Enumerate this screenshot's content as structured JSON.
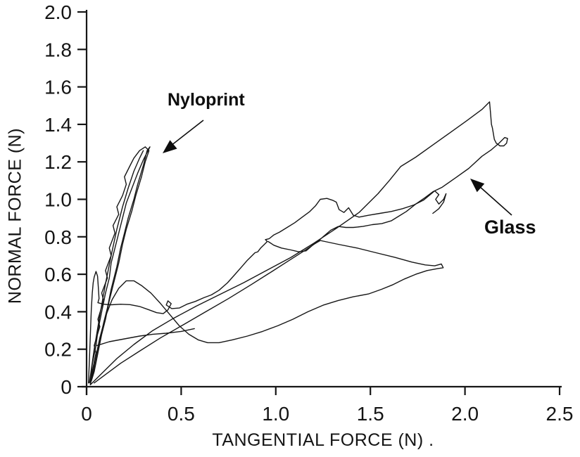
{
  "figure": {
    "background": "#ffffff",
    "ink_color": "#161616",
    "description": "Scanned line chart of normal force versus tangential force showing friction traces for Nyloprint and Glass"
  },
  "chart_data": {
    "type": "line",
    "title": "",
    "xlabel": "TANGENTIAL FORCE (N) .",
    "ylabel": "NORMAL FORCE (N)",
    "xlim": [
      0,
      2.5
    ],
    "ylim": [
      0,
      2.0
    ],
    "grid": false,
    "legend_position": "none (annotated arrows)",
    "xticks": [
      0,
      0.5,
      1.0,
      1.5,
      2.0,
      2.5
    ],
    "xtick_labels": [
      "0",
      "0.5",
      "1.0",
      "1.5",
      "2.0",
      "2.5"
    ],
    "yticks": [
      0,
      0.2,
      0.4,
      0.6,
      0.8,
      1.0,
      1.2,
      1.4,
      1.6,
      1.8,
      2.0
    ],
    "ytick_labels": [
      "0",
      "0.2",
      "0.4",
      "0.6",
      "0.8",
      "1.0",
      "1.2",
      "1.4",
      "1.6",
      "1.8",
      "2.0"
    ],
    "annotations": [
      {
        "text": "Nyloprint",
        "label_x": 0.45,
        "label_y": 1.55,
        "arrow_tip_x": 0.4,
        "arrow_tip_y": 1.25
      },
      {
        "text": "Glass",
        "label_x": 2.12,
        "label_y": 0.88,
        "arrow_tip_x": 2.03,
        "arrow_tip_y": 1.11
      }
    ],
    "series": [
      {
        "name": "nyloprint-cycle-1",
        "material": "Nyloprint",
        "color": "#161616",
        "points": [
          [
            0.02,
            0.02
          ],
          [
            0.03,
            0.12
          ],
          [
            0.05,
            0.22
          ],
          [
            0.06,
            0.3
          ],
          [
            0.08,
            0.4
          ],
          [
            0.1,
            0.5
          ],
          [
            0.12,
            0.58
          ],
          [
            0.13,
            0.66
          ],
          [
            0.15,
            0.74
          ],
          [
            0.17,
            0.82
          ],
          [
            0.19,
            0.9
          ],
          [
            0.21,
            0.98
          ],
          [
            0.24,
            1.06
          ],
          [
            0.27,
            1.14
          ],
          [
            0.3,
            1.21
          ],
          [
            0.33,
            1.27
          ],
          [
            0.335,
            1.28
          ],
          [
            0.32,
            1.26
          ],
          [
            0.3,
            1.18
          ],
          [
            0.27,
            1.08
          ],
          [
            0.25,
            1.0
          ],
          [
            0.22,
            0.9
          ],
          [
            0.2,
            0.82
          ],
          [
            0.18,
            0.74
          ],
          [
            0.16,
            0.64
          ],
          [
            0.13,
            0.52
          ],
          [
            0.11,
            0.42
          ],
          [
            0.09,
            0.34
          ],
          [
            0.07,
            0.24
          ],
          [
            0.05,
            0.14
          ],
          [
            0.03,
            0.05
          ],
          [
            0.02,
            0.02
          ]
        ]
      },
      {
        "name": "nyloprint-cycle-2",
        "material": "Nyloprint",
        "color": "#161616",
        "points": [
          [
            0.02,
            0.03
          ],
          [
            0.05,
            0.18
          ],
          [
            0.04,
            0.22
          ],
          [
            0.07,
            0.32
          ],
          [
            0.06,
            0.36
          ],
          [
            0.09,
            0.46
          ],
          [
            0.08,
            0.5
          ],
          [
            0.11,
            0.58
          ],
          [
            0.1,
            0.62
          ],
          [
            0.13,
            0.7
          ],
          [
            0.12,
            0.74
          ],
          [
            0.15,
            0.82
          ],
          [
            0.14,
            0.86
          ],
          [
            0.17,
            0.92
          ],
          [
            0.16,
            0.96
          ],
          [
            0.19,
            1.02
          ],
          [
            0.21,
            1.08
          ],
          [
            0.2,
            1.12
          ],
          [
            0.23,
            1.18
          ],
          [
            0.25,
            1.22
          ],
          [
            0.28,
            1.26
          ],
          [
            0.31,
            1.28
          ],
          [
            0.33,
            1.26
          ],
          [
            0.31,
            1.2
          ],
          [
            0.29,
            1.12
          ],
          [
            0.26,
            1.02
          ],
          [
            0.24,
            0.94
          ],
          [
            0.21,
            0.84
          ],
          [
            0.19,
            0.76
          ],
          [
            0.17,
            0.66
          ],
          [
            0.14,
            0.54
          ],
          [
            0.12,
            0.46
          ],
          [
            0.1,
            0.36
          ],
          [
            0.08,
            0.28
          ],
          [
            0.06,
            0.18
          ],
          [
            0.04,
            0.08
          ],
          [
            0.025,
            0.03
          ]
        ]
      },
      {
        "name": "nyloprint-cycle-3",
        "material": "Nyloprint",
        "color": "#161616",
        "points": [
          [
            0.015,
            0.02
          ],
          [
            0.04,
            0.2
          ],
          [
            0.07,
            0.38
          ],
          [
            0.1,
            0.55
          ],
          [
            0.13,
            0.7
          ],
          [
            0.16,
            0.84
          ],
          [
            0.19,
            0.96
          ],
          [
            0.22,
            1.06
          ],
          [
            0.25,
            1.15
          ],
          [
            0.28,
            1.22
          ],
          [
            0.3,
            1.26
          ]
        ]
      },
      {
        "name": "glass-large-loop",
        "material": "Glass",
        "color": "#161616",
        "points": [
          [
            0.02,
            0.01
          ],
          [
            0.08,
            0.07
          ],
          [
            0.16,
            0.15
          ],
          [
            0.25,
            0.225
          ],
          [
            0.35,
            0.3
          ],
          [
            0.46,
            0.365
          ],
          [
            0.58,
            0.43
          ],
          [
            0.7,
            0.49
          ],
          [
            0.83,
            0.555
          ],
          [
            0.96,
            0.625
          ],
          [
            1.08,
            0.69
          ],
          [
            1.2,
            0.765
          ],
          [
            1.32,
            0.845
          ],
          [
            1.44,
            0.93
          ],
          [
            1.54,
            1.03
          ],
          [
            1.6,
            1.1
          ],
          [
            1.66,
            1.175
          ],
          [
            1.74,
            1.225
          ],
          [
            1.83,
            1.29
          ],
          [
            1.92,
            1.355
          ],
          [
            2.01,
            1.42
          ],
          [
            2.09,
            1.48
          ],
          [
            2.13,
            1.52
          ],
          [
            2.135,
            1.46
          ],
          [
            2.14,
            1.4
          ],
          [
            2.145,
            1.38
          ],
          [
            2.155,
            1.32
          ],
          [
            2.165,
            1.3
          ],
          [
            2.185,
            1.285
          ],
          [
            2.205,
            1.285
          ],
          [
            2.22,
            1.3
          ],
          [
            2.225,
            1.325
          ],
          [
            2.21,
            1.33
          ],
          [
            2.18,
            1.3
          ],
          [
            2.14,
            1.265
          ],
          [
            2.09,
            1.23
          ],
          [
            2.02,
            1.165
          ],
          [
            1.95,
            1.115
          ],
          [
            1.88,
            1.065
          ],
          [
            1.83,
            1.04
          ],
          [
            1.79,
            1.01
          ],
          [
            1.74,
            0.975
          ],
          [
            1.69,
            0.935
          ],
          [
            1.65,
            0.91
          ],
          [
            1.61,
            0.885
          ],
          [
            1.56,
            0.87
          ],
          [
            1.51,
            0.865
          ],
          [
            1.46,
            0.855
          ],
          [
            1.41,
            0.85
          ],
          [
            1.37,
            0.85
          ],
          [
            1.33,
            0.855
          ],
          [
            1.29,
            0.835
          ],
          [
            1.25,
            0.8
          ],
          [
            1.21,
            0.765
          ],
          [
            1.15,
            0.725
          ],
          [
            1.08,
            0.68
          ],
          [
            0.98,
            0.615
          ],
          [
            0.87,
            0.545
          ],
          [
            0.75,
            0.47
          ],
          [
            0.63,
            0.4
          ],
          [
            0.51,
            0.33
          ],
          [
            0.39,
            0.26
          ],
          [
            0.28,
            0.19
          ],
          [
            0.18,
            0.125
          ],
          [
            0.1,
            0.065
          ],
          [
            0.04,
            0.02
          ]
        ]
      },
      {
        "name": "glass-stick-slip-trace",
        "material": "Glass",
        "color": "#161616",
        "points": [
          [
            0.01,
            0.02
          ],
          [
            0.015,
            0.14
          ],
          [
            0.02,
            0.28
          ],
          [
            0.025,
            0.41
          ],
          [
            0.03,
            0.5
          ],
          [
            0.035,
            0.555
          ],
          [
            0.04,
            0.585
          ],
          [
            0.05,
            0.615
          ],
          [
            0.058,
            0.59
          ],
          [
            0.062,
            0.53
          ],
          [
            0.066,
            0.47
          ],
          [
            0.06,
            0.448
          ],
          [
            0.09,
            0.44
          ],
          [
            0.13,
            0.437
          ],
          [
            0.18,
            0.44
          ],
          [
            0.23,
            0.438
          ],
          [
            0.28,
            0.428
          ],
          [
            0.33,
            0.41
          ],
          [
            0.37,
            0.395
          ],
          [
            0.405,
            0.39
          ],
          [
            0.43,
            0.41
          ],
          [
            0.447,
            0.443
          ],
          [
            0.43,
            0.458
          ],
          [
            0.421,
            0.436
          ],
          [
            0.45,
            0.417
          ],
          [
            0.49,
            0.42
          ],
          [
            0.53,
            0.44
          ],
          [
            0.575,
            0.455
          ],
          [
            0.62,
            0.475
          ],
          [
            0.66,
            0.49
          ],
          [
            0.7,
            0.515
          ],
          [
            0.745,
            0.555
          ],
          [
            0.785,
            0.6
          ],
          [
            0.82,
            0.64
          ],
          [
            0.85,
            0.675
          ],
          [
            0.875,
            0.7
          ],
          [
            0.89,
            0.715
          ],
          [
            0.905,
            0.72
          ],
          [
            0.92,
            0.74
          ],
          [
            0.94,
            0.76
          ],
          [
            0.955,
            0.775
          ],
          [
            0.945,
            0.785
          ],
          [
            0.965,
            0.79
          ],
          [
            0.99,
            0.81
          ],
          [
            1.02,
            0.825
          ],
          [
            1.06,
            0.85
          ],
          [
            1.1,
            0.875
          ],
          [
            1.14,
            0.905
          ],
          [
            1.18,
            0.935
          ],
          [
            1.21,
            0.965
          ],
          [
            1.235,
            1.0
          ],
          [
            1.27,
            1.005
          ],
          [
            1.3,
            0.995
          ],
          [
            1.32,
            0.985
          ],
          [
            1.335,
            0.945
          ],
          [
            1.36,
            0.93
          ],
          [
            1.385,
            0.955
          ],
          [
            1.41,
            0.915
          ],
          [
            1.44,
            0.905
          ],
          [
            1.49,
            0.915
          ],
          [
            1.55,
            0.925
          ],
          [
            1.61,
            0.935
          ],
          [
            1.67,
            0.95
          ],
          [
            1.73,
            0.97
          ],
          [
            1.78,
            0.995
          ],
          [
            1.81,
            1.02
          ],
          [
            1.84,
            1.045
          ],
          [
            1.862,
            1.025
          ],
          [
            1.845,
            1.0
          ],
          [
            1.862,
            0.975
          ],
          [
            1.887,
            1.0
          ],
          [
            1.9,
            1.03
          ],
          [
            1.887,
            0.985
          ],
          [
            1.862,
            0.95
          ],
          [
            1.83,
            0.925
          ]
        ]
      },
      {
        "name": "glass-low-loop",
        "material": "Glass",
        "color": "#161616",
        "points": [
          [
            0.02,
            0.01
          ],
          [
            0.04,
            0.12
          ],
          [
            0.07,
            0.26
          ],
          [
            0.1,
            0.375
          ],
          [
            0.135,
            0.465
          ],
          [
            0.17,
            0.525
          ],
          [
            0.21,
            0.565
          ],
          [
            0.25,
            0.565
          ],
          [
            0.29,
            0.54
          ],
          [
            0.34,
            0.5
          ],
          [
            0.39,
            0.445
          ],
          [
            0.44,
            0.385
          ],
          [
            0.49,
            0.325
          ],
          [
            0.54,
            0.28
          ],
          [
            0.59,
            0.25
          ],
          [
            0.64,
            0.235
          ],
          [
            0.7,
            0.235
          ],
          [
            0.77,
            0.25
          ],
          [
            0.85,
            0.27
          ],
          [
            0.93,
            0.295
          ],
          [
            1.01,
            0.325
          ],
          [
            1.09,
            0.36
          ],
          [
            1.17,
            0.4
          ],
          [
            1.25,
            0.435
          ],
          [
            1.33,
            0.46
          ],
          [
            1.41,
            0.48
          ],
          [
            1.49,
            0.495
          ],
          [
            1.56,
            0.52
          ],
          [
            1.62,
            0.545
          ],
          [
            1.68,
            0.575
          ],
          [
            1.74,
            0.6
          ],
          [
            1.8,
            0.62
          ],
          [
            1.855,
            0.63
          ],
          [
            1.885,
            0.635
          ],
          [
            1.875,
            0.655
          ],
          [
            1.84,
            0.645
          ],
          [
            1.79,
            0.65
          ],
          [
            1.72,
            0.665
          ],
          [
            1.63,
            0.69
          ],
          [
            1.53,
            0.715
          ],
          [
            1.43,
            0.74
          ],
          [
            1.33,
            0.76
          ],
          [
            1.26,
            0.775
          ],
          [
            1.235,
            0.78
          ],
          [
            1.2,
            0.76
          ],
          [
            1.16,
            0.725
          ],
          [
            1.12,
            0.72
          ],
          [
            1.08,
            0.73
          ],
          [
            1.03,
            0.74
          ],
          [
            0.99,
            0.755
          ],
          [
            0.96,
            0.775
          ]
        ]
      },
      {
        "name": "glass-low-flat-segment",
        "material": "Glass",
        "color": "#161616",
        "points": [
          [
            0.055,
            0.22
          ],
          [
            0.12,
            0.24
          ],
          [
            0.2,
            0.255
          ],
          [
            0.28,
            0.27
          ],
          [
            0.35,
            0.28
          ],
          [
            0.42,
            0.285
          ],
          [
            0.5,
            0.295
          ],
          [
            0.57,
            0.31
          ]
        ]
      }
    ]
  }
}
